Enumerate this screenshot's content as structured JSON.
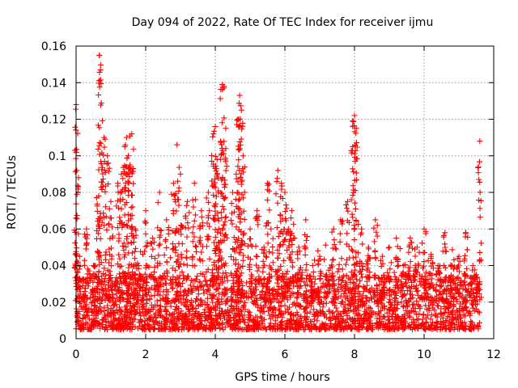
{
  "chart_data": {
    "type": "scatter",
    "title": "Day 094 of 2022, Rate Of TEC Index for receiver ijmu",
    "xlabel": "GPS time / hours",
    "ylabel": "ROTI / TECUs",
    "xlim": [
      0,
      12
    ],
    "ylim": [
      0,
      0.16
    ],
    "x_ticks": [
      0,
      2,
      4,
      6,
      8,
      10,
      12
    ],
    "y_ticks": [
      0,
      0.02,
      0.04,
      0.06,
      0.08,
      0.1,
      0.12,
      0.14,
      0.16
    ],
    "x_tick_labels": [
      "0",
      "2",
      "4",
      "6",
      "8",
      "10",
      "12"
    ],
    "y_tick_labels": [
      "0",
      "0.02",
      "0.04",
      "0.06",
      "0.08",
      "0.1",
      "0.12",
      "0.14",
      "0.16"
    ],
    "grid": true,
    "marker": "+",
    "series": [
      {
        "name": "ROTI",
        "color": "#ff0000",
        "x": [
          0.0,
          0.02,
          0.1,
          0.3,
          0.5,
          0.65,
          0.67,
          0.7,
          0.8,
          0.9,
          1.0,
          1.2,
          1.3,
          1.4,
          1.45,
          1.5,
          1.55,
          1.6,
          1.7,
          1.8,
          2.0,
          2.2,
          2.4,
          2.6,
          2.8,
          2.9,
          3.0,
          3.2,
          3.4,
          3.6,
          3.8,
          3.95,
          4.0,
          4.05,
          4.1,
          4.2,
          4.25,
          4.3,
          4.5,
          4.6,
          4.65,
          4.7,
          4.75,
          4.8,
          5.0,
          5.2,
          5.4,
          5.5,
          5.6,
          5.8,
          5.9,
          6.0,
          6.1,
          6.2,
          6.4,
          6.6,
          6.8,
          7.0,
          7.2,
          7.4,
          7.6,
          7.8,
          7.95,
          8.0,
          8.05,
          8.2,
          8.4,
          8.6,
          8.8,
          9.0,
          9.2,
          9.4,
          9.6,
          9.8,
          10.0,
          10.2,
          10.4,
          10.6,
          10.8,
          11.0,
          11.2,
          11.4,
          11.5,
          11.6
        ],
        "y": [
          0.128,
          0.092,
          0.045,
          0.06,
          0.04,
          0.078,
          0.155,
          0.147,
          0.11,
          0.1,
          0.075,
          0.085,
          0.09,
          0.105,
          0.11,
          0.1,
          0.095,
          0.112,
          0.06,
          0.04,
          0.07,
          0.055,
          0.08,
          0.065,
          0.085,
          0.106,
          0.09,
          0.075,
          0.085,
          0.07,
          0.08,
          0.112,
          0.116,
          0.098,
          0.06,
          0.139,
          0.138,
          0.115,
          0.08,
          0.09,
          0.12,
          0.133,
          0.125,
          0.1,
          0.06,
          0.07,
          0.05,
          0.085,
          0.06,
          0.092,
          0.085,
          0.08,
          0.06,
          0.07,
          0.05,
          0.065,
          0.04,
          0.045,
          0.035,
          0.06,
          0.065,
          0.075,
          0.105,
          0.122,
          0.115,
          0.06,
          0.05,
          0.065,
          0.045,
          0.05,
          0.055,
          0.04,
          0.055,
          0.05,
          0.06,
          0.045,
          0.04,
          0.058,
          0.04,
          0.045,
          0.058,
          0.04,
          0.035,
          0.108
        ]
      }
    ],
    "background_cloud": {
      "description_values": "dense band of ROTI values between 0.005 and 0.035 TECU/s over 0-11.6 h",
      "x_range": [
        0,
        11.6
      ],
      "y_range": [
        0.005,
        0.035
      ],
      "count": 2600
    }
  }
}
